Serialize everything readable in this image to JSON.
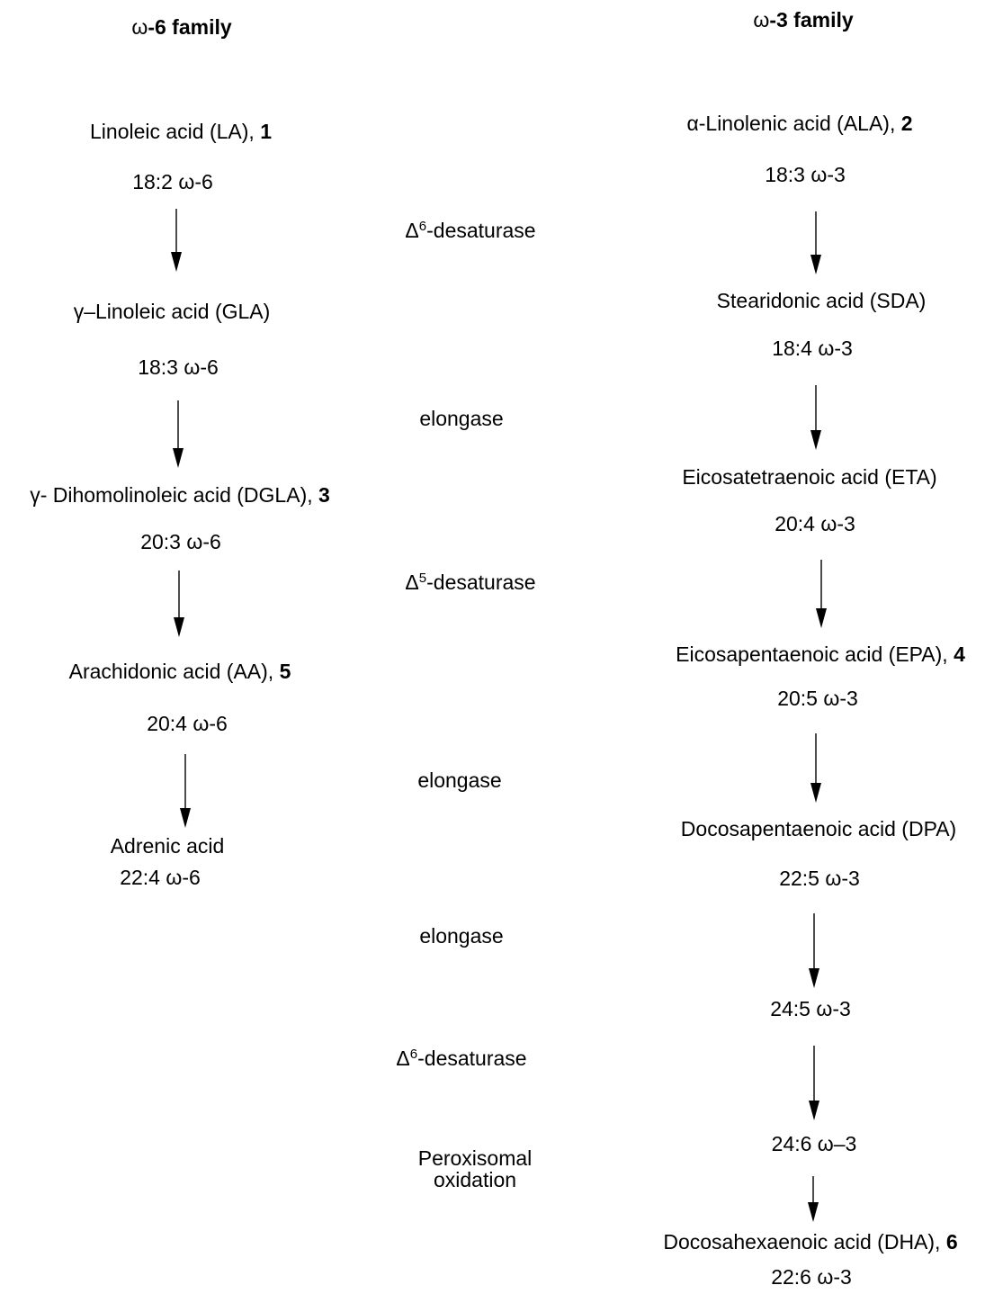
{
  "omega6": {
    "header_sym": "ω",
    "header_rest": "-6 family",
    "steps": [
      {
        "name": "Linoleic acid (LA), ",
        "num": "1",
        "formula": "18:2 ω-6"
      },
      {
        "name": "γ–Linoleic acid (GLA)",
        "num": "",
        "formula": "18:3 ω-6"
      },
      {
        "name": "γ- Dihomolinoleic acid (DGLA), ",
        "num": "3",
        "formula": "20:3 ω-6"
      },
      {
        "name": "Arachidonic acid (AA), ",
        "num": "5",
        "formula": "20:4 ω-6"
      },
      {
        "name": "Adrenic acid",
        "num": "",
        "formula": "22:4 ω-6"
      }
    ]
  },
  "omega3": {
    "header_sym": "ω",
    "header_rest": "-3 family",
    "steps": [
      {
        "name": "α-Linolenic acid (ALA), ",
        "num": "2",
        "formula": "18:3 ω-3"
      },
      {
        "name": "Stearidonic acid (SDA)",
        "num": "",
        "formula": "18:4 ω-3"
      },
      {
        "name": "Eicosatetraenoic acid (ETA)",
        "num": "",
        "formula": "20:4 ω-3"
      },
      {
        "name": "Eicosapentaenoic acid (EPA), ",
        "num": "4",
        "formula": "20:5 ω-3"
      },
      {
        "name": "Docosapentaenoic acid (DPA)",
        "num": "",
        "formula": "22:5 ω-3"
      },
      {
        "name": "",
        "num": "",
        "formula": "24:5 ω-3"
      },
      {
        "name": "",
        "num": "",
        "formula": "24:6 ω–3"
      },
      {
        "name": "Docosahexaenoic acid (DHA), ",
        "num": "6",
        "formula": "22:6 ω-3"
      }
    ]
  },
  "enzymes": [
    {
      "pre": "Δ",
      "sup": "6",
      "post": "-desaturase"
    },
    {
      "pre": "elongase",
      "sup": "",
      "post": ""
    },
    {
      "pre": "Δ",
      "sup": "5",
      "post": "-desaturase"
    },
    {
      "pre": "elongase",
      "sup": "",
      "post": ""
    },
    {
      "pre": "elongase",
      "sup": "",
      "post": ""
    },
    {
      "pre": "Δ",
      "sup": "6",
      "post": "-desaturase"
    },
    {
      "pre": "Peroxisomal",
      "sup": "",
      "post": "oxidation"
    }
  ]
}
